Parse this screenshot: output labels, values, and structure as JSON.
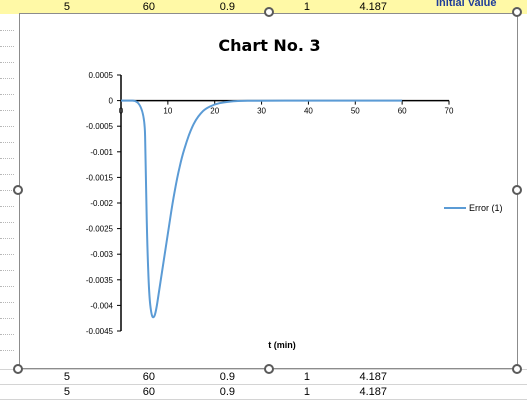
{
  "spreadsheet": {
    "top_row": [
      "5",
      "60",
      "0.9",
      "1",
      "4.187"
    ],
    "top_right_header": "Initial Value",
    "bottom_rows": [
      [
        "5",
        "60",
        "0.9",
        "1",
        "4.187"
      ],
      [
        "5",
        "60",
        "0.9",
        "1",
        "4.187"
      ]
    ]
  },
  "chart_data": {
    "type": "line",
    "title": "Chart No. 3",
    "xlabel": "t (min)",
    "ylabel": "",
    "xlim": [
      0,
      70
    ],
    "ylim": [
      -0.0045,
      0.0005
    ],
    "x_ticks": [
      "0",
      "10",
      "20",
      "30",
      "40",
      "50",
      "60",
      "70"
    ],
    "y_ticks": [
      "0.0005",
      "0",
      "-0.0005",
      "-0.001",
      "-0.0015",
      "-0.002",
      "-0.0025",
      "-0.003",
      "-0.0035",
      "-0.004",
      "-0.0045"
    ],
    "grid": false,
    "legend_position": "right",
    "series": [
      {
        "name": "Error (1)",
        "color": "#5b9bd5",
        "x": [
          0,
          5,
          5.3,
          5.6,
          6.0,
          6.5,
          7.0,
          7.5,
          8.0,
          9.0,
          10.0,
          11.0,
          12.0,
          13.0,
          14.0,
          15.0,
          16.0,
          17.0,
          18.0,
          20.0,
          22.0,
          24.0,
          26.0,
          28.0,
          30.0,
          40.0,
          50.0,
          60.0
        ],
        "values": [
          0,
          0,
          -0.0014,
          -0.0028,
          -0.0038,
          -0.0042,
          -0.00425,
          -0.0041,
          -0.0038,
          -0.0032,
          -0.0026,
          -0.002,
          -0.0015,
          -0.0011,
          -0.0008,
          -0.00055,
          -0.00037,
          -0.00025,
          -0.00016,
          -7e-05,
          -3e-05,
          -1.2e-05,
          -5e-06,
          -2e-06,
          0,
          0,
          0,
          0
        ]
      }
    ]
  }
}
